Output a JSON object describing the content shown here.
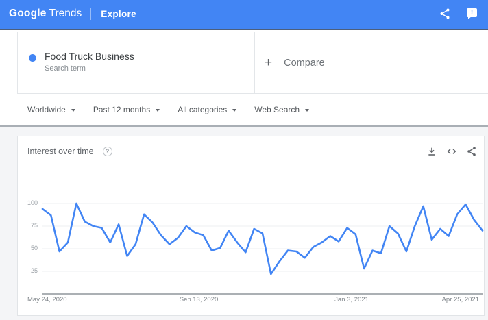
{
  "header": {
    "brand_primary": "Google",
    "brand_secondary": "Trends",
    "nav_label": "Explore",
    "bg_color": "#4285f4",
    "feedback_glyph": "!"
  },
  "query": {
    "term": "Food Truck Business",
    "term_type": "Search term",
    "dot_color": "#4285f4",
    "plus_glyph": "+",
    "compare_label": "Compare"
  },
  "filters": [
    {
      "label": "Worldwide"
    },
    {
      "label": "Past 12 months"
    },
    {
      "label": "All categories"
    },
    {
      "label": "Web Search"
    }
  ],
  "widget": {
    "title": "Interest over time",
    "help_glyph": "?"
  },
  "chart_data": {
    "type": "line",
    "title": "Interest over time",
    "series_name": "Food Truck Business",
    "line_color": "#4285f4",
    "grid": "horizontal",
    "legend": "none",
    "ylim": [
      0,
      100
    ],
    "yticks": [
      100,
      75,
      50,
      25
    ],
    "xticks": [
      "May 24, 2020",
      "Sep 13, 2020",
      "Jan 3, 2021",
      "Apr 25, 2021"
    ],
    "xtick_indices": [
      0,
      16,
      32,
      48
    ],
    "x_unit": "week",
    "values": [
      94,
      87,
      47,
      57,
      100,
      80,
      75,
      73,
      57,
      77,
      42,
      55,
      88,
      79,
      65,
      55,
      62,
      75,
      68,
      65,
      48,
      51,
      70,
      57,
      46,
      72,
      67,
      22,
      36,
      48,
      47,
      40,
      52,
      57,
      64,
      58,
      73,
      66,
      28,
      48,
      45,
      75,
      67,
      47,
      75,
      97,
      60,
      72,
      64,
      88,
      99,
      82,
      70
    ]
  }
}
